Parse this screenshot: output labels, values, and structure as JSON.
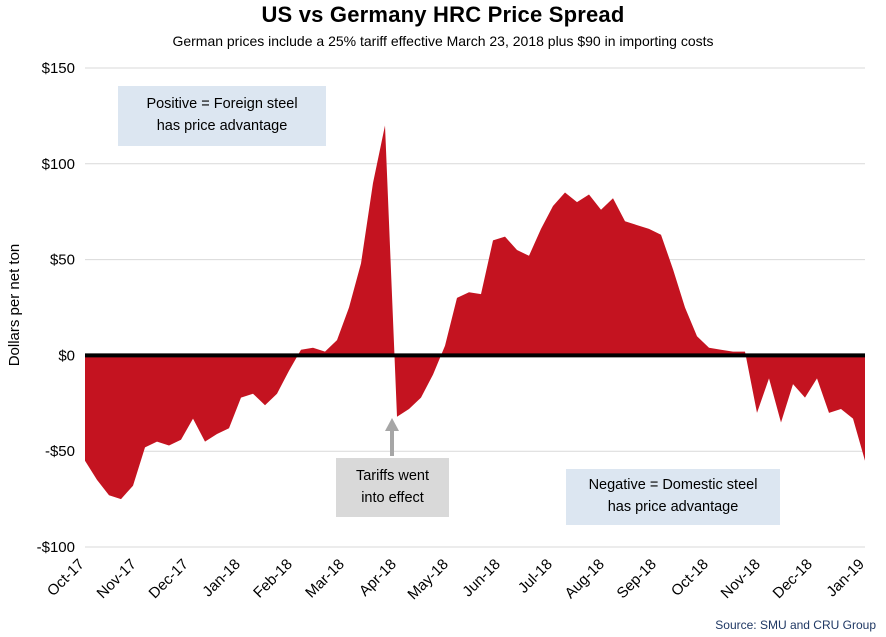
{
  "chart_data": {
    "type": "area",
    "title": "US vs Germany HRC Price Spread",
    "subtitle": "German prices include a 25% tariff effective March 23, 2018 plus $90 in importing costs",
    "ylabel": "Dollars per net ton",
    "ylim": [
      -100,
      150
    ],
    "grid": "horizontal",
    "yticks": [
      {
        "value": 150,
        "label": "$150"
      },
      {
        "value": 100,
        "label": "$100"
      },
      {
        "value": 50,
        "label": "$50"
      },
      {
        "value": 0,
        "label": "$0"
      },
      {
        "value": -50,
        "label": "-$50"
      },
      {
        "value": -100,
        "label": "-$100"
      }
    ],
    "x_tick_labels": [
      "Oct-17",
      "Nov-17",
      "Dec-17",
      "Jan-18",
      "Feb-18",
      "Mar-18",
      "Apr-18",
      "May-18",
      "Jun-18",
      "Jul-18",
      "Aug-18",
      "Sep-18",
      "Oct-18",
      "Nov-18",
      "Dec-18",
      "Jan-19"
    ],
    "series": [
      {
        "name": "US minus Germany HRC price spread ($/net ton, weekly)",
        "values": [
          -55,
          -65,
          -73,
          -75,
          -68,
          -48,
          -45,
          -47,
          -44,
          -33,
          -45,
          -41,
          -38,
          -22,
          -20,
          -26,
          -20,
          -8,
          3,
          4,
          2,
          8,
          25,
          48,
          90,
          120,
          -32,
          -28,
          -22,
          -10,
          5,
          30,
          33,
          32,
          60,
          62,
          55,
          52,
          66,
          78,
          85,
          80,
          84,
          76,
          82,
          70,
          68,
          66,
          63,
          45,
          25,
          10,
          4,
          3,
          2,
          2,
          -30,
          -12,
          -35,
          -15,
          -22,
          -12,
          -30,
          -28,
          -33,
          -55
        ]
      }
    ],
    "fill_color": "#c41320",
    "zero_line_color": "#000000"
  },
  "annotations": {
    "positive": {
      "line1": "Positive = Foreign steel",
      "line2": "has price advantage"
    },
    "tariffs": {
      "line1": "Tariffs went",
      "line2": "into effect"
    },
    "negative": {
      "line1": "Negative = Domestic steel",
      "line2": "has price advantage"
    }
  },
  "source": "Source: SMU and CRU Group",
  "colors": {
    "annotation_blue": "#dce6f1",
    "annotation_gray": "#d9d9d9",
    "arrow_gray": "#a6a6a6",
    "gridline": "#d9d9d9",
    "source_text": "#1f3864"
  }
}
